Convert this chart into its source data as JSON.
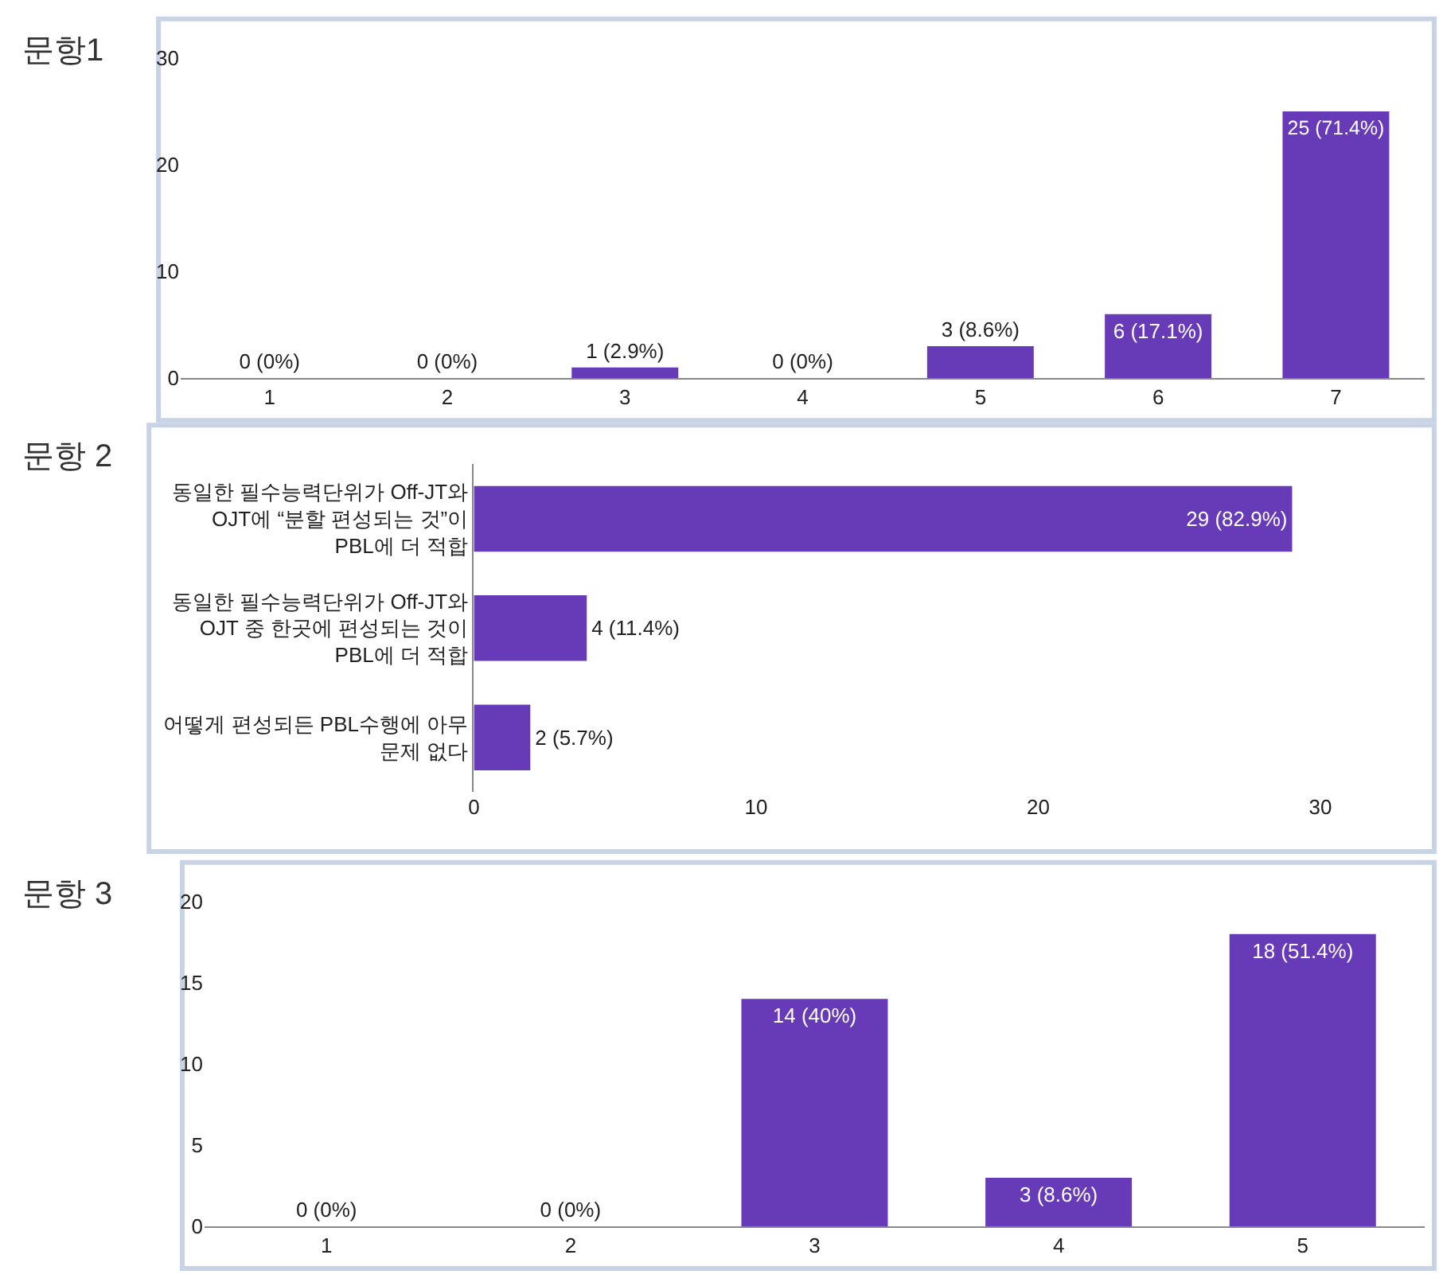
{
  "chart_data": [
    {
      "type": "bar",
      "title": "문항1",
      "categories": [
        "1",
        "2",
        "3",
        "4",
        "5",
        "6",
        "7"
      ],
      "values": [
        0,
        0,
        1,
        0,
        3,
        6,
        25
      ],
      "color": "#673ab7",
      "value_labels": [
        "0 (0%)",
        "0 (0%)",
        "1 (2.9%)",
        "0 (0%)",
        "3 (8.6%)",
        "6 (17.1%)",
        "25 (71.4%)"
      ],
      "ylim": [
        0,
        30
      ],
      "yticks": [
        0,
        10,
        20,
        30
      ],
      "grid": false,
      "legend": false
    },
    {
      "type": "bar",
      "title": "문항 2",
      "orientation": "horizontal",
      "categories": [
        "동일한 필수능력단위가 Off-JT와 OJT에 “분할 편성되는 것”이 PBL에 더 적합",
        "동일한 필수능력단위가 Off-JT와 OJT 중 한곳에 편성되는 것이 PBL에 더 적합",
        "어떻게 편성되든 PBL수행에 아무 문제 없다"
      ],
      "values": [
        29,
        4,
        2
      ],
      "color": "#673ab7",
      "value_labels": [
        "29 (82.9%)",
        "4 (11.4%)",
        "2 (5.7%)"
      ],
      "xlim": [
        0,
        33.7
      ],
      "xticks": [
        0,
        10,
        20,
        30
      ],
      "grid": false,
      "legend": false
    },
    {
      "type": "bar",
      "title": "문항 3",
      "categories": [
        "1",
        "2",
        "3",
        "4",
        "5"
      ],
      "values": [
        0,
        0,
        14,
        3,
        18
      ],
      "color": "#673ab7",
      "value_labels": [
        "0 (0%)",
        "0 (0%)",
        "14 (40%)",
        "3 (8.6%)",
        "18 (51.4%)"
      ],
      "ylim": [
        0,
        20
      ],
      "yticks": [
        0,
        5,
        10,
        15,
        20
      ],
      "grid": false,
      "legend": false
    }
  ]
}
